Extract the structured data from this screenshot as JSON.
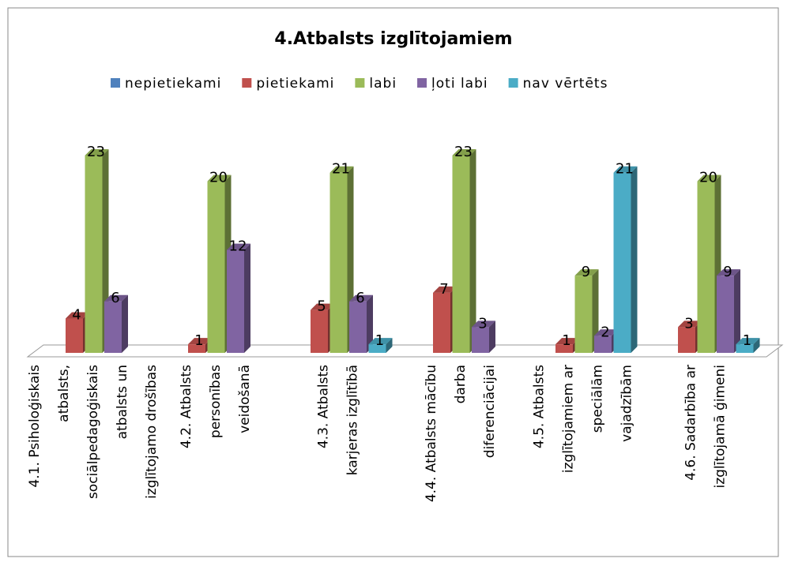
{
  "chart_data": {
    "type": "bar3d",
    "title": "4.Atbalsts izglītojamiem",
    "categories": [
      "4.1. Psiholoģiskais\natbalsts,\nsociālpedagoģiskais\natbalsts un\nizglītojamo drošības",
      "4.2. Atbalsts\npersonības\nveidošanā",
      "4.3. Atbalsts\nkarjeras izglītībā",
      "4.4. Atbalsts mācību\ndarba\ndiferenciācijai",
      "4.5. Atbalsts\nizglītojamiem ar\nspeciālām\nvajadzībām",
      "4.6. Sadarbība ar\nizglītojamā ģimeni"
    ],
    "series": [
      {
        "name": "nepietiekami",
        "color": "#4f81bd",
        "values": [
          null,
          null,
          null,
          null,
          null,
          null
        ]
      },
      {
        "name": "pietiekami",
        "color": "#c0504d",
        "values": [
          4,
          1,
          5,
          7,
          1,
          3
        ]
      },
      {
        "name": "labi",
        "color": "#9bbb59",
        "values": [
          23,
          20,
          21,
          23,
          9,
          20
        ]
      },
      {
        "name": "ļoti labi",
        "color": "#8064a2",
        "values": [
          6,
          12,
          6,
          3,
          2,
          9
        ]
      },
      {
        "name": "nav vērtēts",
        "color": "#4bacc6",
        "values": [
          null,
          null,
          1,
          null,
          21,
          1
        ]
      }
    ],
    "legend": "top"
  }
}
